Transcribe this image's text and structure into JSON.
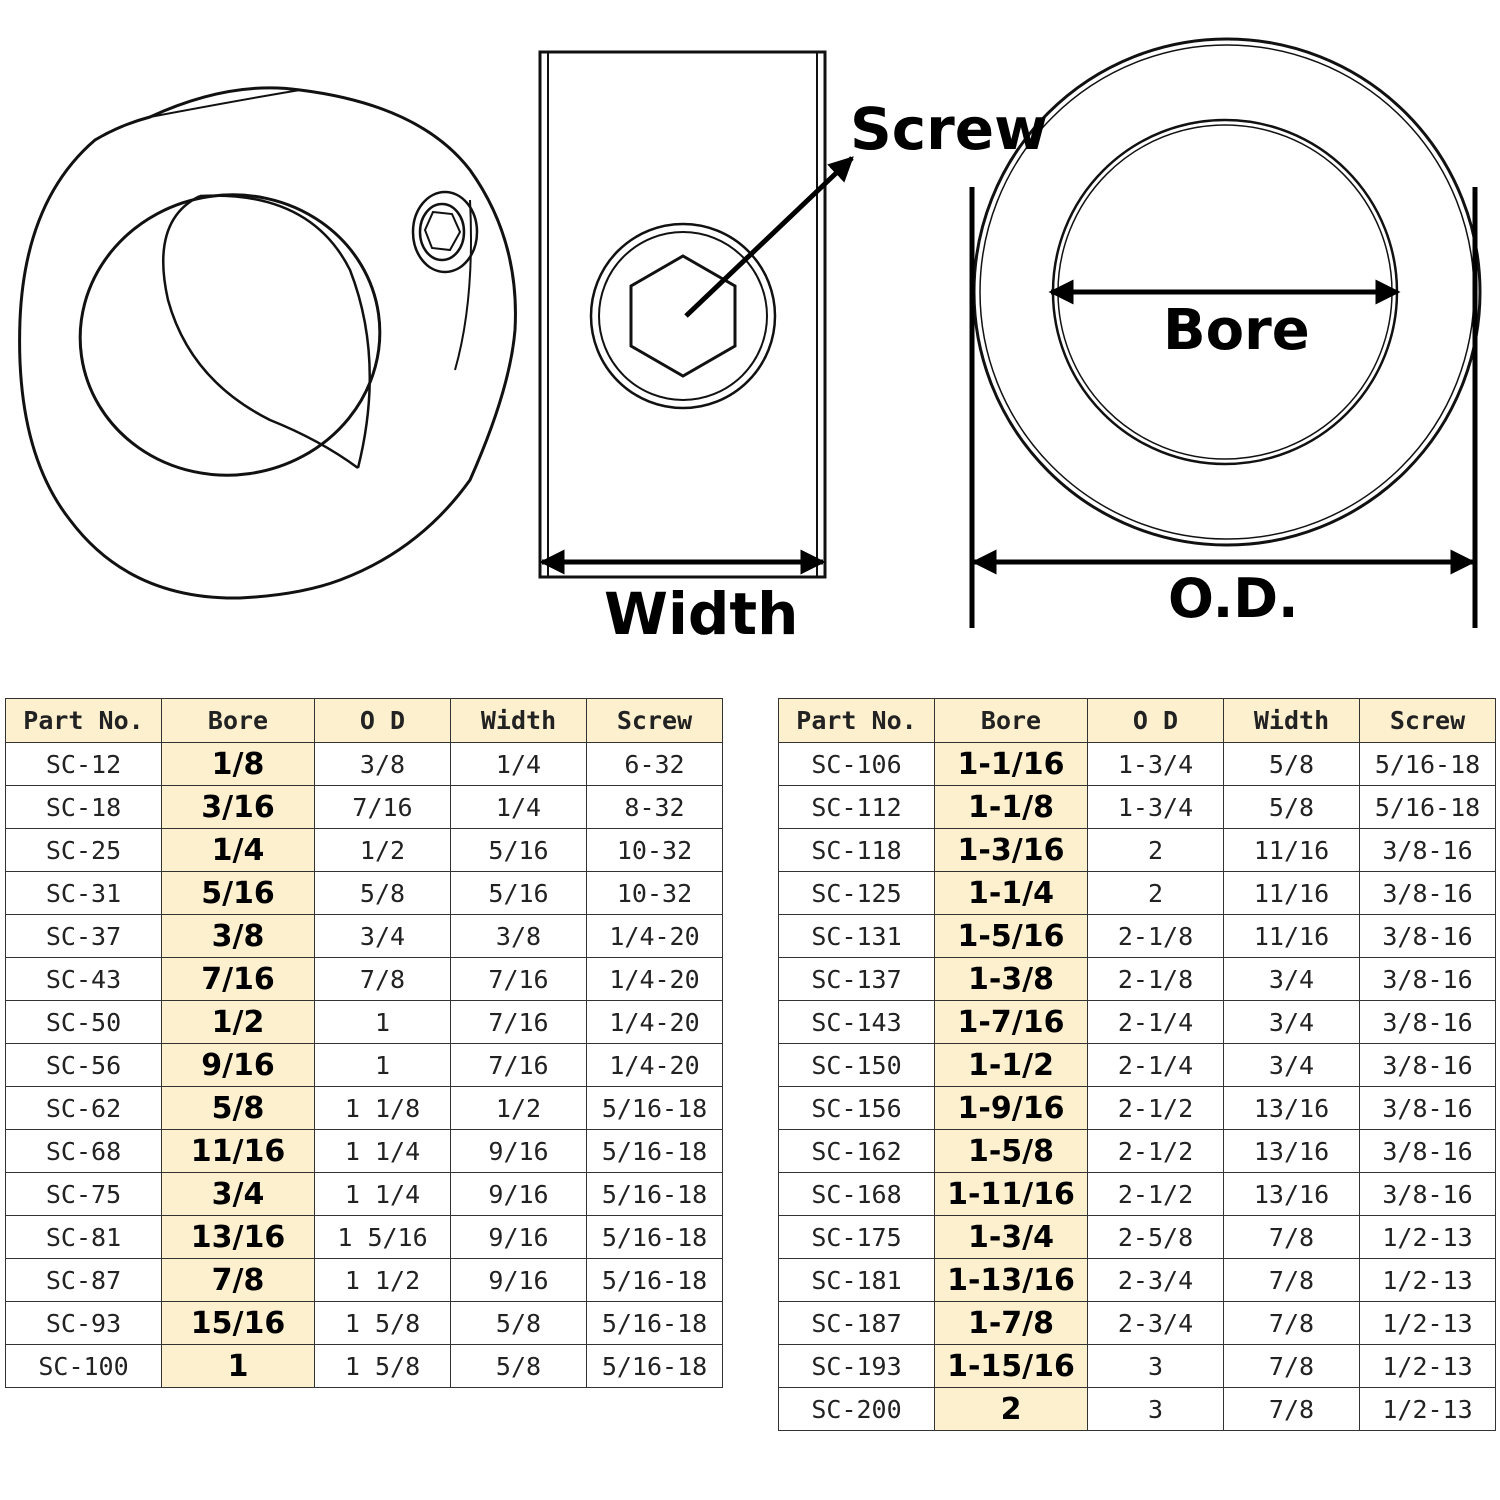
{
  "labels": {
    "screw": "Screw",
    "bore": "Bore",
    "width": "Width",
    "od": "O.D."
  },
  "columns": [
    "Part No.",
    "Bore",
    "O D",
    "Width",
    "Screw"
  ],
  "table_left": [
    [
      "SC-12",
      "1/8",
      "3/8",
      "1/4",
      "6-32"
    ],
    [
      "SC-18",
      "3/16",
      "7/16",
      "1/4",
      "8-32"
    ],
    [
      "SC-25",
      "1/4",
      "1/2",
      "5/16",
      "10-32"
    ],
    [
      "SC-31",
      "5/16",
      "5/8",
      "5/16",
      "10-32"
    ],
    [
      "SC-37",
      "3/8",
      "3/4",
      "3/8",
      "1/4-20"
    ],
    [
      "SC-43",
      "7/16",
      "7/8",
      "7/16",
      "1/4-20"
    ],
    [
      "SC-50",
      "1/2",
      "1",
      "7/16",
      "1/4-20"
    ],
    [
      "SC-56",
      "9/16",
      "1",
      "7/16",
      "1/4-20"
    ],
    [
      "SC-62",
      "5/8",
      "1 1/8",
      "1/2",
      "5/16-18"
    ],
    [
      "SC-68",
      "11/16",
      "1 1/4",
      "9/16",
      "5/16-18"
    ],
    [
      "SC-75",
      "3/4",
      "1 1/4",
      "9/16",
      "5/16-18"
    ],
    [
      "SC-81",
      "13/16",
      "1 5/16",
      "9/16",
      "5/16-18"
    ],
    [
      "SC-87",
      "7/8",
      "1 1/2",
      "9/16",
      "5/16-18"
    ],
    [
      "SC-93",
      "15/16",
      "1 5/8",
      "5/8",
      "5/16-18"
    ],
    [
      "SC-100",
      "1",
      "1 5/8",
      "5/8",
      "5/16-18"
    ]
  ],
  "table_right": [
    [
      "SC-106",
      "1-1/16",
      "1-3/4",
      "5/8",
      "5/16-18"
    ],
    [
      "SC-112",
      "1-1/8",
      "1-3/4",
      "5/8",
      "5/16-18"
    ],
    [
      "SC-118",
      "1-3/16",
      "2",
      "11/16",
      "3/8-16"
    ],
    [
      "SC-125",
      "1-1/4",
      "2",
      "11/16",
      "3/8-16"
    ],
    [
      "SC-131",
      "1-5/16",
      "2-1/8",
      "11/16",
      "3/8-16"
    ],
    [
      "SC-137",
      "1-3/8",
      "2-1/8",
      "3/4",
      "3/8-16"
    ],
    [
      "SC-143",
      "1-7/16",
      "2-1/4",
      "3/4",
      "3/8-16"
    ],
    [
      "SC-150",
      "1-1/2",
      "2-1/4",
      "3/4",
      "3/8-16"
    ],
    [
      "SC-156",
      "1-9/16",
      "2-1/2",
      "13/16",
      "3/8-16"
    ],
    [
      "SC-162",
      "1-5/8",
      "2-1/2",
      "13/16",
      "3/8-16"
    ],
    [
      "SC-168",
      "1-11/16",
      "2-1/2",
      "13/16",
      "3/8-16"
    ],
    [
      "SC-175",
      "1-3/4",
      "2-5/8",
      "7/8",
      "1/2-13"
    ],
    [
      "SC-181",
      "1-13/16",
      "2-3/4",
      "7/8",
      "1/2-13"
    ],
    [
      "SC-187",
      "1-7/8",
      "2-3/4",
      "7/8",
      "1/2-13"
    ],
    [
      "SC-193",
      "1-15/16",
      "3",
      "7/8",
      "1/2-13"
    ],
    [
      "SC-200",
      "2",
      "3",
      "7/8",
      "1/2-13"
    ]
  ]
}
